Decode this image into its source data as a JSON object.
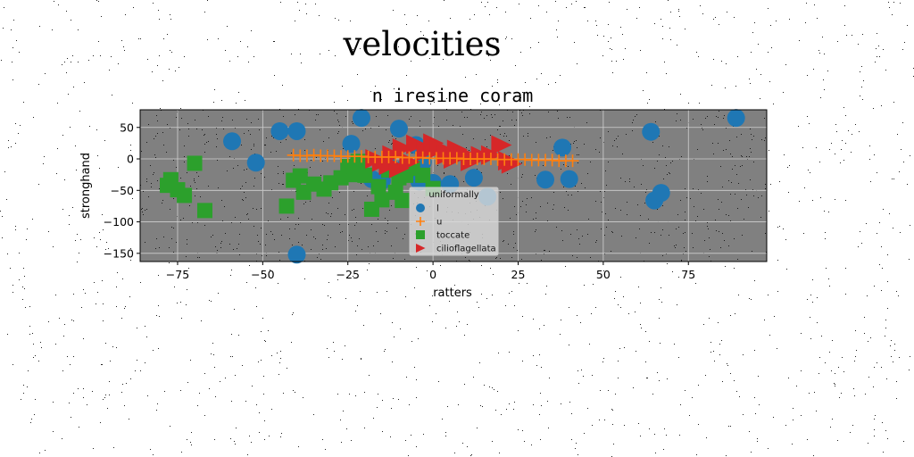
{
  "figure_title": "velocities",
  "chart_data": {
    "type": "scatter",
    "title": "n iresine coram",
    "xlabel": "ratters",
    "ylabel": "stronghand",
    "xlim": [
      -86,
      98
    ],
    "ylim": [
      -163,
      78
    ],
    "xticks": [
      -75,
      -50,
      -25,
      0,
      25,
      50,
      75
    ],
    "xtick_labels": [
      "−75",
      "−50",
      "−25",
      "0",
      "25",
      "50",
      "75"
    ],
    "yticks": [
      50,
      0,
      -50,
      -100,
      -150
    ],
    "ytick_labels": [
      "50",
      "0",
      "−50",
      "−100",
      "−150"
    ],
    "grid": true,
    "background": "#808080",
    "legend": {
      "title": "uniformally",
      "placement": "lower-center"
    },
    "series": [
      {
        "name": "l",
        "marker": "circle",
        "color": "#1f77b4",
        "points": [
          [
            -59,
            28
          ],
          [
            -52,
            -6
          ],
          [
            -45,
            44
          ],
          [
            -40,
            44
          ],
          [
            -40,
            -152
          ],
          [
            -24,
            24
          ],
          [
            -22,
            -6
          ],
          [
            -21,
            65
          ],
          [
            -18,
            -32
          ],
          [
            -15,
            -35
          ],
          [
            -13,
            -10
          ],
          [
            -10,
            48
          ],
          [
            -8,
            -12
          ],
          [
            -5,
            22
          ],
          [
            -4,
            -36
          ],
          [
            -3,
            -5
          ],
          [
            0,
            -38
          ],
          [
            5,
            -40
          ],
          [
            12,
            -30
          ],
          [
            16,
            -60
          ],
          [
            33,
            -33
          ],
          [
            38,
            18
          ],
          [
            40,
            -32
          ],
          [
            64,
            43
          ],
          [
            65,
            -66
          ],
          [
            67,
            -54
          ],
          [
            89,
            65
          ]
        ]
      },
      {
        "name": "u",
        "marker": "plus",
        "color": "#ff7f0e",
        "points": [
          [
            -41,
            6
          ],
          [
            -39,
            5
          ],
          [
            -37,
            5
          ],
          [
            -35,
            6
          ],
          [
            -33,
            5
          ],
          [
            -31,
            5
          ],
          [
            -29,
            5
          ],
          [
            -27,
            4
          ],
          [
            -25,
            4
          ],
          [
            -23,
            4
          ],
          [
            -21,
            4
          ],
          [
            -19,
            3
          ],
          [
            -17,
            3
          ],
          [
            -15,
            3
          ],
          [
            -13,
            3
          ],
          [
            -11,
            3
          ],
          [
            -9,
            2
          ],
          [
            -7,
            2
          ],
          [
            -5,
            2
          ],
          [
            -3,
            2
          ],
          [
            -1,
            1
          ],
          [
            1,
            1
          ],
          [
            3,
            1
          ],
          [
            5,
            1
          ],
          [
            7,
            1
          ],
          [
            9,
            0
          ],
          [
            11,
            0
          ],
          [
            13,
            0
          ],
          [
            15,
            0
          ],
          [
            17,
            0
          ],
          [
            19,
            -1
          ],
          [
            21,
            -1
          ],
          [
            23,
            -1
          ],
          [
            25,
            -1
          ],
          [
            27,
            -1
          ],
          [
            29,
            -2
          ],
          [
            31,
            -2
          ],
          [
            33,
            -2
          ],
          [
            35,
            -2
          ],
          [
            37,
            -3
          ],
          [
            39,
            -3
          ],
          [
            41,
            -3
          ]
        ]
      },
      {
        "name": "toccate",
        "marker": "square",
        "color": "#2ca02c",
        "points": [
          [
            -78,
            -42
          ],
          [
            -77,
            -33
          ],
          [
            -75,
            -49
          ],
          [
            -73,
            -58
          ],
          [
            -70,
            -7
          ],
          [
            -67,
            -82
          ],
          [
            -43,
            -75
          ],
          [
            -41,
            -34
          ],
          [
            -39,
            -27
          ],
          [
            -38,
            -53
          ],
          [
            -35,
            -40
          ],
          [
            -32,
            -48
          ],
          [
            -30,
            -38
          ],
          [
            -27,
            -30
          ],
          [
            -25,
            -12
          ],
          [
            -23,
            -25
          ],
          [
            -22,
            -4
          ],
          [
            -20,
            -26
          ],
          [
            -18,
            -80
          ],
          [
            -16,
            -44
          ],
          [
            -15,
            -65
          ],
          [
            -13,
            -18
          ],
          [
            -11,
            -53
          ],
          [
            -10,
            -30
          ],
          [
            -9,
            -66
          ],
          [
            -8,
            -26
          ],
          [
            -6,
            -15
          ],
          [
            -3,
            -26
          ],
          [
            0,
            -47
          ]
        ]
      },
      {
        "name": "cilioflagellata",
        "marker": "triangle-right",
        "color": "#d62728",
        "points": [
          [
            -17,
            0
          ],
          [
            -15,
            -5
          ],
          [
            -13,
            -10
          ],
          [
            -12,
            6
          ],
          [
            -10,
            -15
          ],
          [
            -9,
            17
          ],
          [
            -7,
            -5
          ],
          [
            -5,
            23
          ],
          [
            -2,
            12
          ],
          [
            0,
            25
          ],
          [
            2,
            17
          ],
          [
            4,
            6
          ],
          [
            6,
            0
          ],
          [
            7,
            15
          ],
          [
            9,
            8
          ],
          [
            11,
            -4
          ],
          [
            14,
            5
          ],
          [
            17,
            6
          ],
          [
            20,
            22
          ],
          [
            22,
            -3
          ],
          [
            23,
            -8
          ]
        ]
      }
    ]
  }
}
